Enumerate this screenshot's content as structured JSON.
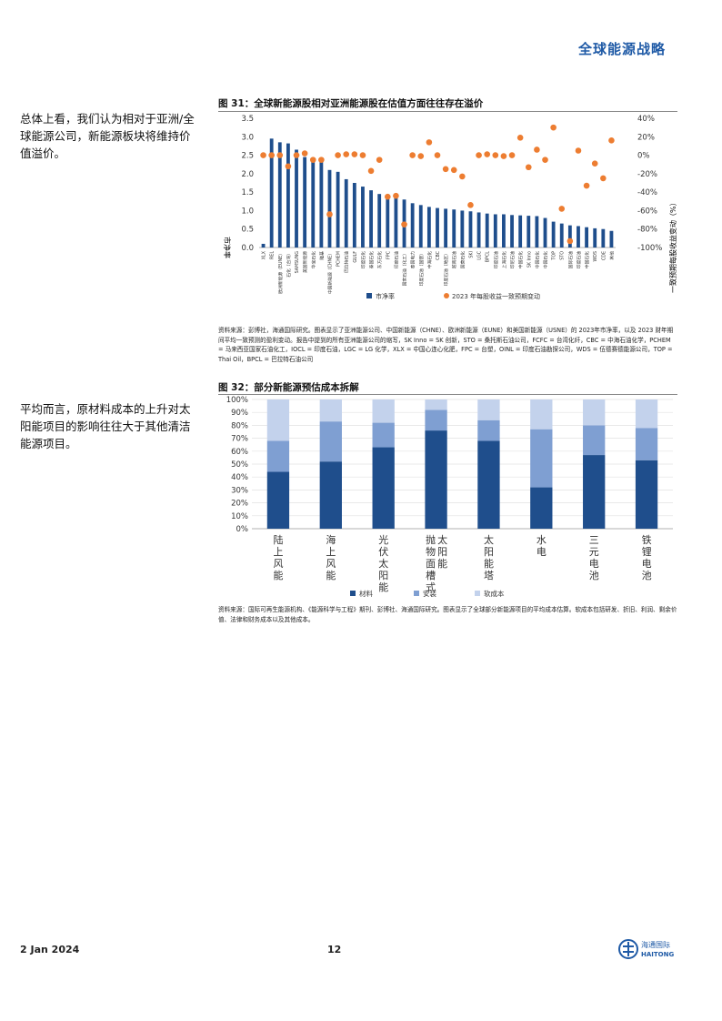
{
  "header": {
    "brand": "全球能源战略"
  },
  "side_notes": {
    "note1": "总体上看，我们认为相对于亚洲/全球能源公司，新能源板块将维持价值溢价。",
    "note2": "平均而言，原材料成本的上升对太阳能项目的影响往往大于其他清洁能源项目。"
  },
  "fig31": {
    "title": "图 31：全球新能源股相对亚洲能源股在估值方面往往存在溢价",
    "source": "资料来源：彭博社，海通国际研究。图表显示了亚洲能源公司、中国新能源（CHNE）、欧洲新能源（EUNE）和美国新能源（USNE）的 2023年市净率，以及 2023 财年期间平均一致预测的盈利变动。报告中提到的所有亚洲能源公司的缩写，SK Inno = SK 创新，STO = 桑托斯石油公司，FCFC = 台湾化纤，CBC = 中海石油化学，PCHEM = 马来西亚国家石油化工，IOCL = 印度石油，LGC = LG 化学，XLX = 中国心连心化肥，FPC = 台塑，OINL = 印度石油勘探公司，WDS = 伍德赛德能源公司，TOP = Thai Oil，BPCL = 巴拉特石油公司"
  },
  "fig32": {
    "title": "图 32：部分新能源预估成本拆解",
    "source": "资料来源：国际可再生能源机构、《能源科学与工程》期刊、彭博社、海通国际研究。图表显示了全球部分新能源项目的平均成本估算。软成本包括研发、折旧、利润、剩余价值、法律和财务成本以及其他成本。"
  },
  "footer": {
    "date": "2 Jan 2024",
    "page": "12",
    "logo_cn": "海通国际",
    "logo_en": "HAITONG"
  },
  "chart_data": [
    {
      "type": "bar",
      "title": "图 31：全球新能源股相对亚洲能源股在估值方面往往存在溢价",
      "categories": [
        "XLX",
        "REL",
        "欧洲新能源（EUNE）",
        "石化（台湾）",
        "SAMSUNG",
        "美国新能源",
        "华宝石化",
        "隆基",
        "中国新能源（CHNE）",
        "PCHEM",
        "巴拉特石油",
        "GULF",
        "印度石化",
        "泰国石化",
        "东方石化",
        "FPC",
        "印度石油",
        "国家石油（化工）",
        "泰国电力",
        "印度石油（国营）",
        "中海石化",
        "CBC",
        "印度石油（地区）",
        "越南石油",
        "国营石化",
        "SKI",
        "LGC",
        "BPCL",
        "印度石油",
        "上海石化",
        "印尼石油",
        "中国石化",
        "SK Inno",
        "中国石化",
        "中国石化",
        "TOP",
        "STO",
        "国际石油",
        "印度石油",
        "中国石化",
        "WDS",
        "CDE",
        "其他"
      ],
      "series": [
        {
          "name": "市净率",
          "axis": "left",
          "type": "bar",
          "values": [
            0.1,
            2.95,
            2.85,
            2.82,
            2.65,
            2.45,
            2.38,
            2.32,
            2.1,
            2.05,
            1.85,
            1.75,
            1.65,
            1.55,
            1.45,
            1.4,
            1.35,
            1.3,
            1.2,
            1.15,
            1.1,
            1.07,
            1.05,
            1.03,
            1.0,
            0.98,
            0.95,
            0.92,
            0.9,
            0.9,
            0.88,
            0.87,
            0.86,
            0.85,
            0.8,
            0.7,
            0.65,
            0.6,
            0.58,
            0.55,
            0.52,
            0.5,
            0.45
          ]
        },
        {
          "name": "2023 年每股收益一致预期变动",
          "axis": "right",
          "type": "scatter",
          "values": [
            0,
            0,
            0,
            -12,
            0,
            2,
            -5,
            -5,
            -64,
            0,
            1,
            1,
            0,
            -17,
            -5,
            -45,
            -44,
            -75,
            0,
            -1,
            14,
            0,
            -15,
            -16,
            -23,
            -54,
            0,
            1,
            0,
            -1,
            0,
            19,
            -13,
            6,
            -5,
            30,
            -58,
            -93,
            5,
            -33,
            -9,
            -25,
            16
          ]
        }
      ],
      "ylim": [
        0,
        3.5
      ],
      "ylabel": "市净率",
      "y2lim": [
        -100,
        40
      ],
      "y2label": "一致预期每股收益变动（%）",
      "legend_position": "bottom"
    },
    {
      "type": "bar",
      "stacked": true,
      "title": "图 32：部分新能源预估成本拆解",
      "categories": [
        "陆上风能",
        "海上风能",
        "光伏太阳能",
        "抛物面槽式太阳能",
        "太阳能塔",
        "水电",
        "三元电池",
        "铁锂电池"
      ],
      "series": [
        {
          "name": "材料",
          "values": [
            44,
            52,
            63,
            76,
            68,
            32,
            57,
            53
          ],
          "color": "#1f4e8c"
        },
        {
          "name": "安装",
          "values": [
            24,
            31,
            19,
            16,
            16,
            45,
            23,
            25
          ],
          "color": "#7f9fd2"
        },
        {
          "name": "软成本",
          "values": [
            32,
            17,
            18,
            8,
            16,
            23,
            20,
            22
          ],
          "color": "#c3d2ec"
        }
      ],
      "ylim": [
        0,
        100
      ],
      "legend_position": "bottom"
    }
  ]
}
